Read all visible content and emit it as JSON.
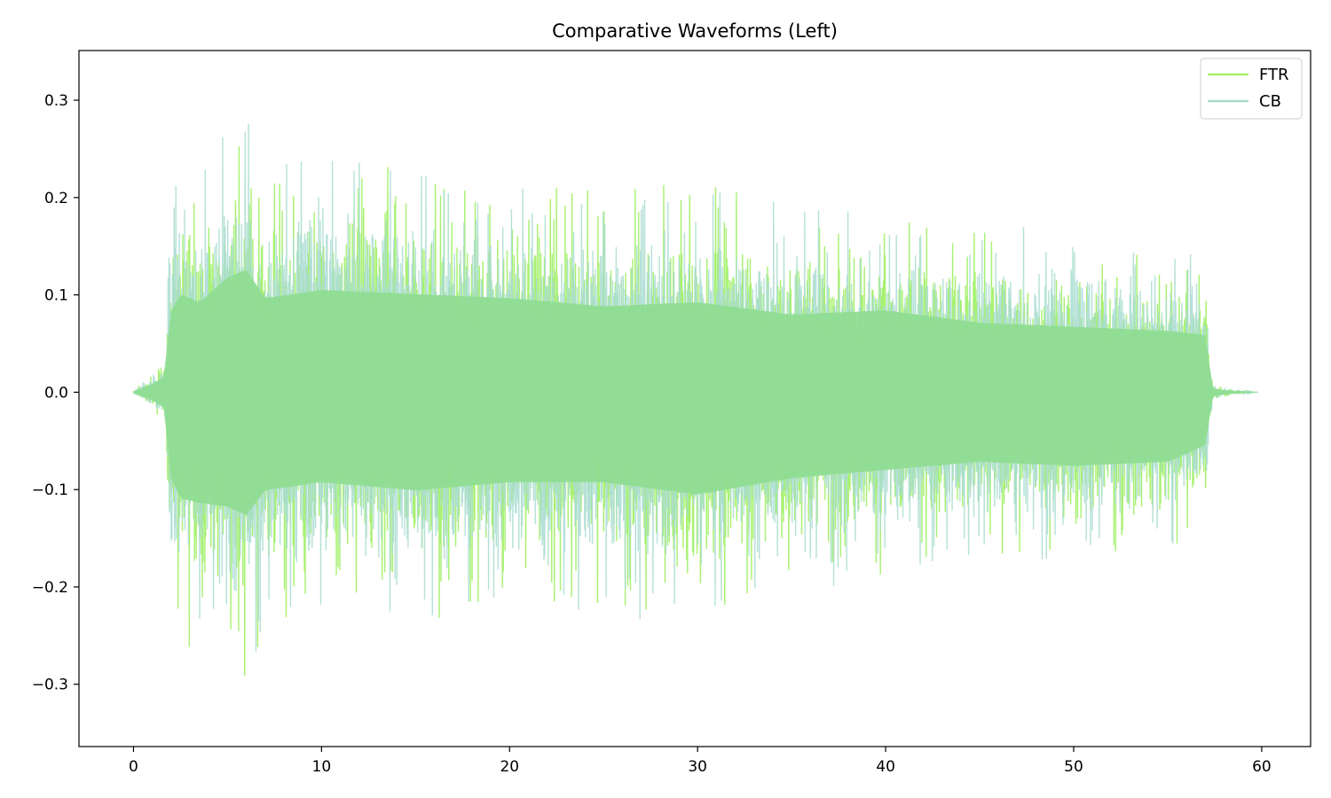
{
  "chart_data": {
    "type": "line",
    "title": "Comparative Waveforms (Left)",
    "xlabel": "",
    "ylabel": "",
    "xlim": [
      -2.9,
      62.6
    ],
    "ylim": [
      -0.364,
      0.351
    ],
    "x_ticks": [
      0,
      10,
      20,
      30,
      40,
      50,
      60
    ],
    "x_tick_labels": [
      "0",
      "10",
      "20",
      "30",
      "40",
      "50",
      "60"
    ],
    "y_ticks": [
      0.3,
      0.2,
      0.1,
      0.0,
      -0.1,
      -0.2,
      -0.3
    ],
    "y_tick_labels": [
      "0.3",
      "0.2",
      "0.1",
      "0.0",
      "−0.1",
      "−0.2",
      "−0.3"
    ],
    "grid": false,
    "legend_position": "top-right",
    "duration_s": 59.8,
    "series": [
      {
        "name": "FTR",
        "color": "#a3f06a",
        "envelope": {
          "x": [
            0,
            1.0,
            1.7,
            1.9,
            2.5,
            3.5,
            5.0,
            6.0,
            7.0,
            10,
            15,
            20,
            25,
            30,
            35,
            40,
            45,
            50,
            55,
            57.0,
            57.4,
            58.0,
            59.7
          ],
          "upper": [
            0.002,
            0.02,
            0.04,
            0.19,
            0.24,
            0.22,
            0.28,
            0.3,
            0.23,
            0.25,
            0.24,
            0.23,
            0.21,
            0.22,
            0.19,
            0.2,
            0.17,
            0.16,
            0.15,
            0.14,
            0.01,
            0.005,
            0.0
          ],
          "lower": [
            -0.002,
            -0.02,
            -0.04,
            -0.2,
            -0.26,
            -0.27,
            -0.28,
            -0.3,
            -0.24,
            -0.22,
            -0.24,
            -0.22,
            -0.22,
            -0.25,
            -0.21,
            -0.19,
            -0.17,
            -0.18,
            -0.17,
            -0.13,
            -0.01,
            -0.005,
            0.0
          ]
        }
      },
      {
        "name": "CB",
        "color": "#a8dcd0",
        "envelope": {
          "x": [
            0,
            1.0,
            1.7,
            1.9,
            2.5,
            3.5,
            5.0,
            6.0,
            7.0,
            10,
            15,
            20,
            25,
            30,
            35,
            40,
            45,
            50,
            55,
            57.0,
            57.4,
            58.0,
            59.7
          ],
          "upper": [
            0.002,
            0.02,
            0.04,
            0.22,
            0.26,
            0.22,
            0.3,
            0.29,
            0.22,
            0.27,
            0.23,
            0.21,
            0.22,
            0.21,
            0.2,
            0.18,
            0.17,
            0.18,
            0.16,
            0.13,
            0.01,
            0.005,
            0.0
          ],
          "lower": [
            -0.002,
            -0.02,
            -0.04,
            -0.21,
            -0.25,
            -0.26,
            -0.31,
            -0.3,
            -0.24,
            -0.23,
            -0.25,
            -0.23,
            -0.23,
            -0.24,
            -0.21,
            -0.19,
            -0.18,
            -0.17,
            -0.16,
            -0.15,
            -0.01,
            -0.005,
            0.0
          ]
        }
      }
    ],
    "overlap_color": "#8fdc92"
  }
}
